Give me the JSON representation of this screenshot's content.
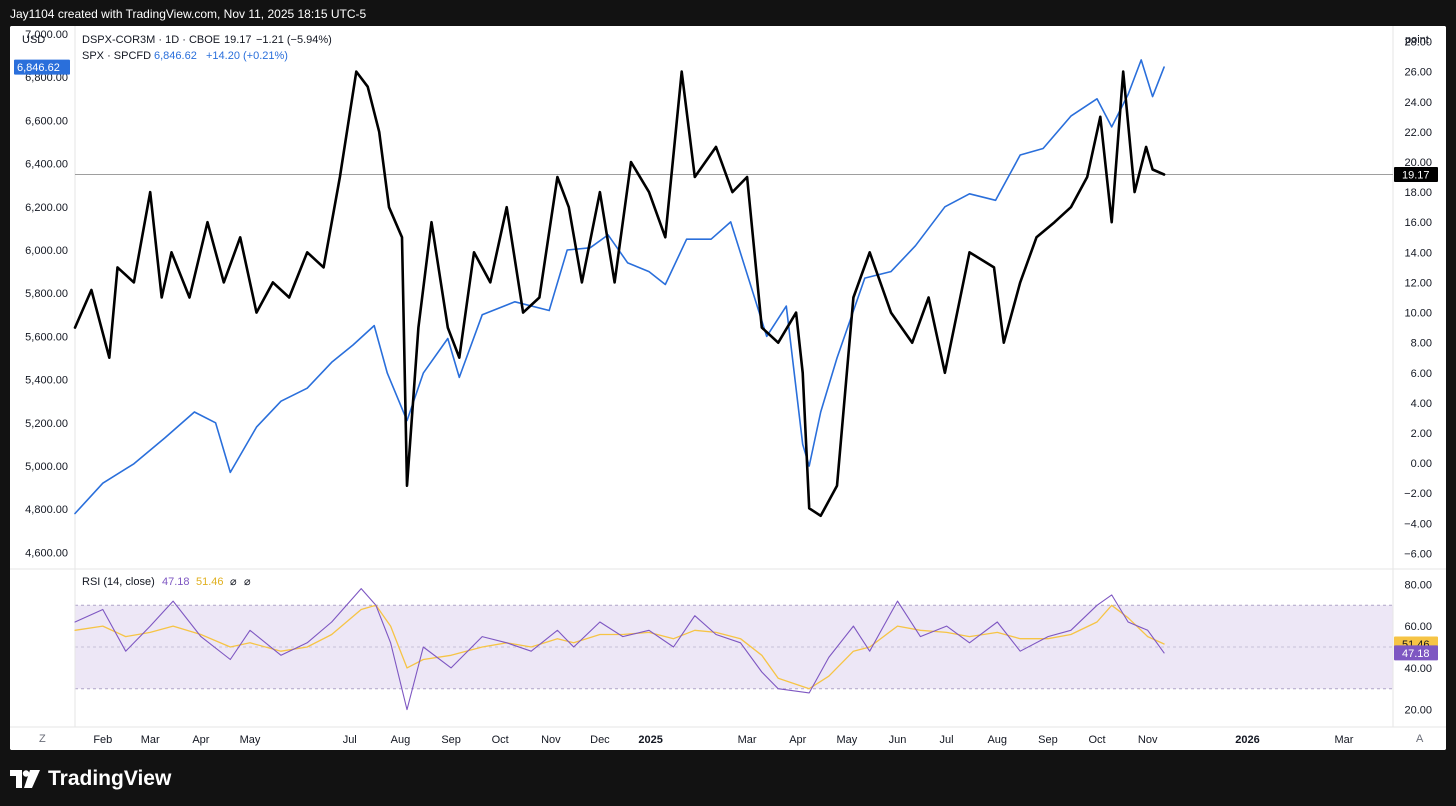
{
  "header": {
    "credit": "Jay1104 created with TradingView.com, Nov 11, 2025 18:15 UTC-5"
  },
  "brand": {
    "name": "TradingView"
  },
  "legend": {
    "series1": {
      "label": "DSPX-COR3M · 1D · CBOE",
      "value": "19.17",
      "change": "−1.21 (−5.94%)"
    },
    "series2": {
      "label": "SPX · SPCFD",
      "value": "6,846.62",
      "change": "+14.20 (+0.21%)"
    }
  },
  "rsi_legend": {
    "label": "RSI (14, close)",
    "rsi_value": "47.18",
    "ma_value": "51.46",
    "icon1": "⌀",
    "icon2": "⌀"
  },
  "axes": {
    "left_unit": "USD",
    "right_unit": "point",
    "left_ticks": [
      "7,000.00",
      "6,800.00",
      "6,600.00",
      "6,400.00",
      "6,200.00",
      "6,000.00",
      "5,800.00",
      "5,600.00",
      "5,400.00",
      "5,200.00",
      "5,000.00",
      "4,800.00",
      "4,600.00"
    ],
    "right_ticks": [
      "28.00",
      "26.00",
      "24.00",
      "22.00",
      "20.00",
      "18.00",
      "16.00",
      "14.00",
      "12.00",
      "10.00",
      "8.00",
      "6.00",
      "4.00",
      "2.00",
      "0.00",
      "−2.00",
      "−4.00",
      "−6.00"
    ],
    "rsi_ticks": [
      "80.00",
      "60.00",
      "40.00",
      "20.00"
    ],
    "x_labels": [
      "Feb",
      "Mar",
      "Apr",
      "May",
      "Jul",
      "Aug",
      "Sep",
      "Oct",
      "Nov",
      "Dec",
      "2025",
      "Mar",
      "Apr",
      "May",
      "Jun",
      "Jul",
      "Aug",
      "Sep",
      "Oct",
      "Nov",
      "2026",
      "Mar"
    ],
    "z_button": "Z",
    "a_button": "A"
  },
  "price_badges": {
    "spx": "6,846.62",
    "dspx": "19.17",
    "rsi_ma": "51.46",
    "rsi": "47.18"
  },
  "colors": {
    "spx": "#2a6fdb",
    "dspx": "#000000",
    "rsi": "#7e57c2",
    "rsi_ma": "#f6c445",
    "rsi_band": "#ede7f6"
  },
  "chart_data": {
    "type": "line",
    "series": [
      {
        "name": "SPX · SPCFD",
        "axis": "left",
        "x": [
          "2024-01-15",
          "2024-02-01",
          "2024-02-20",
          "2024-03-10",
          "2024-03-28",
          "2024-04-10",
          "2024-04-19",
          "2024-05-05",
          "2024-05-20",
          "2024-06-05",
          "2024-06-20",
          "2024-07-03",
          "2024-07-16",
          "2024-07-24",
          "2024-08-05",
          "2024-08-15",
          "2024-08-30",
          "2024-09-06",
          "2024-09-20",
          "2024-10-10",
          "2024-10-31",
          "2024-11-11",
          "2024-11-25",
          "2024-12-06",
          "2024-12-18",
          "2024-12-31",
          "2025-01-10",
          "2025-01-23",
          "2025-02-07",
          "2025-02-19",
          "2025-03-03",
          "2025-03-13",
          "2025-03-25",
          "2025-04-04",
          "2025-04-08",
          "2025-04-15",
          "2025-04-25",
          "2025-05-12",
          "2025-05-28",
          "2025-06-12",
          "2025-06-30",
          "2025-07-15",
          "2025-07-31",
          "2025-08-15",
          "2025-08-29",
          "2025-09-15",
          "2025-10-01",
          "2025-10-10",
          "2025-10-20",
          "2025-10-28",
          "2025-11-04",
          "2025-11-11"
        ],
        "values": [
          4780,
          4920,
          5010,
          5130,
          5250,
          5200,
          4970,
          5180,
          5300,
          5360,
          5480,
          5560,
          5650,
          5430,
          5210,
          5430,
          5590,
          5410,
          5700,
          5760,
          5720,
          6000,
          6010,
          6070,
          5940,
          5900,
          5840,
          6050,
          6050,
          6130,
          5840,
          5600,
          5740,
          5100,
          5000,
          5250,
          5500,
          5870,
          5900,
          6020,
          6200,
          6260,
          6230,
          6440,
          6470,
          6620,
          6700,
          6570,
          6720,
          6880,
          6710,
          6846.62
        ]
      },
      {
        "name": "DSPX-COR3M · 1D · CBOE",
        "axis": "right",
        "x": [
          "2024-01-15",
          "2024-01-25",
          "2024-02-05",
          "2024-02-10",
          "2024-02-20",
          "2024-03-01",
          "2024-03-08",
          "2024-03-14",
          "2024-03-25",
          "2024-04-05",
          "2024-04-15",
          "2024-04-25",
          "2024-05-05",
          "2024-05-15",
          "2024-05-25",
          "2024-06-05",
          "2024-06-15",
          "2024-06-25",
          "2024-07-05",
          "2024-07-12",
          "2024-07-19",
          "2024-07-25",
          "2024-08-02",
          "2024-08-05",
          "2024-08-12",
          "2024-08-20",
          "2024-08-30",
          "2024-09-06",
          "2024-09-15",
          "2024-09-25",
          "2024-10-05",
          "2024-10-15",
          "2024-10-25",
          "2024-11-05",
          "2024-11-12",
          "2024-11-20",
          "2024-12-01",
          "2024-12-10",
          "2024-12-20",
          "2024-12-31",
          "2025-01-10",
          "2025-01-20",
          "2025-01-28",
          "2025-02-10",
          "2025-02-20",
          "2025-03-01",
          "2025-03-10",
          "2025-03-20",
          "2025-03-31",
          "2025-04-04",
          "2025-04-08",
          "2025-04-15",
          "2025-04-25",
          "2025-05-05",
          "2025-05-15",
          "2025-05-28",
          "2025-06-10",
          "2025-06-20",
          "2025-06-30",
          "2025-07-15",
          "2025-07-30",
          "2025-08-05",
          "2025-08-15",
          "2025-08-25",
          "2025-09-05",
          "2025-09-15",
          "2025-09-25",
          "2025-10-03",
          "2025-10-10",
          "2025-10-17",
          "2025-10-24",
          "2025-10-31",
          "2025-11-04",
          "2025-11-11"
        ],
        "values": [
          9,
          11.5,
          7,
          13,
          12,
          18,
          11,
          14,
          11,
          16,
          12,
          15,
          10,
          12,
          11,
          14,
          13,
          19,
          26,
          25,
          22,
          17,
          15,
          -1.5,
          9,
          16,
          9,
          7,
          14,
          12,
          17,
          10,
          11,
          19,
          17,
          12,
          18,
          12,
          20,
          18,
          15,
          26,
          19,
          21,
          18,
          19,
          9,
          8,
          10,
          6,
          -3,
          -3.5,
          -1.5,
          11,
          14,
          10,
          8,
          11,
          6,
          14,
          13,
          8,
          12,
          15,
          16,
          17,
          19,
          23,
          16,
          26,
          18,
          21,
          19.5,
          19.17
        ]
      }
    ],
    "rsi": {
      "name": "RSI (14, close)",
      "x": [
        "2024-01-15",
        "2024-02-01",
        "2024-02-15",
        "2024-03-01",
        "2024-03-15",
        "2024-04-01",
        "2024-04-19",
        "2024-05-01",
        "2024-05-20",
        "2024-06-05",
        "2024-06-20",
        "2024-07-08",
        "2024-07-17",
        "2024-07-26",
        "2024-08-05",
        "2024-08-15",
        "2024-09-01",
        "2024-09-20",
        "2024-10-05",
        "2024-10-20",
        "2024-11-05",
        "2024-11-15",
        "2024-12-01",
        "2024-12-15",
        "2024-12-31",
        "2025-01-15",
        "2025-01-28",
        "2025-02-10",
        "2025-02-25",
        "2025-03-10",
        "2025-03-20",
        "2025-04-08",
        "2025-04-20",
        "2025-05-05",
        "2025-05-15",
        "2025-06-01",
        "2025-06-15",
        "2025-07-01",
        "2025-07-15",
        "2025-08-01",
        "2025-08-15",
        "2025-09-01",
        "2025-09-15",
        "2025-10-01",
        "2025-10-10",
        "2025-10-20",
        "2025-11-01",
        "2025-11-11"
      ],
      "values": [
        62,
        68,
        48,
        60,
        72,
        55,
        44,
        58,
        46,
        52,
        62,
        78,
        70,
        52,
        20,
        50,
        40,
        55,
        52,
        48,
        58,
        50,
        62,
        55,
        58,
        50,
        65,
        56,
        52,
        38,
        30,
        28,
        45,
        60,
        48,
        72,
        55,
        60,
        52,
        62,
        48,
        55,
        58,
        70,
        75,
        62,
        58,
        47.18
      ],
      "ma": [
        58,
        60,
        55,
        57,
        60,
        56,
        50,
        52,
        48,
        50,
        56,
        68,
        70,
        60,
        40,
        44,
        46,
        50,
        52,
        50,
        54,
        52,
        56,
        56,
        57,
        54,
        58,
        57,
        54,
        46,
        35,
        30,
        36,
        48,
        50,
        60,
        58,
        57,
        55,
        57,
        54,
        54,
        56,
        62,
        70,
        64,
        55,
        51.46
      ],
      "bands": [
        30,
        70
      ],
      "ylim": [
        15,
        85
      ]
    },
    "xlim": [
      "2024-01-15",
      "2026-03-31"
    ],
    "ylim_left": [
      4560,
      7000
    ],
    "ylim_right": [
      -6.5,
      28.5
    ],
    "current_values": {
      "spx": 6846.62,
      "dspx": 19.17,
      "rsi": 47.18,
      "rsi_ma": 51.46
    }
  }
}
